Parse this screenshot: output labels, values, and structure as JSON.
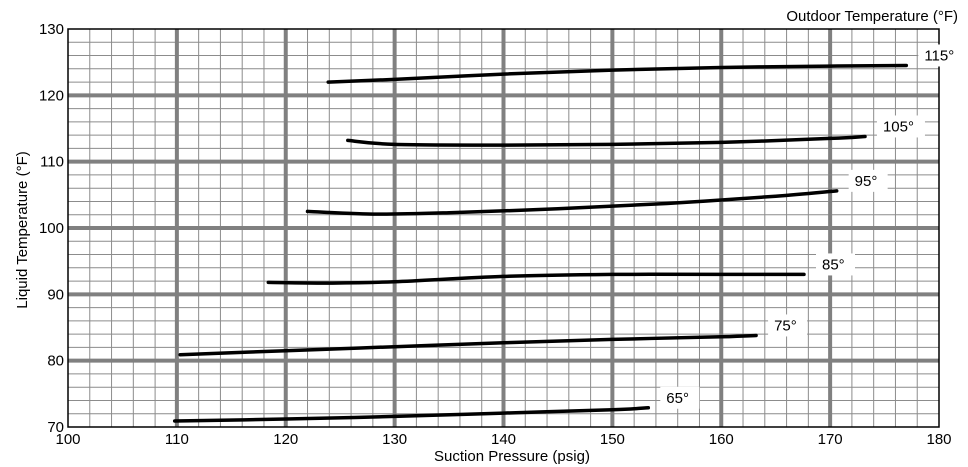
{
  "chart_data": {
    "type": "line",
    "title": "",
    "legend_title": "Outdoor Temperature (°F)",
    "xlabel": "Suction Pressure (psig)",
    "ylabel": "Liquid  Temperature  (°F)",
    "xlim": [
      100,
      180
    ],
    "ylim": [
      70,
      130
    ],
    "x_ticks": [
      100,
      110,
      120,
      130,
      140,
      150,
      160,
      170,
      180
    ],
    "y_ticks": [
      70,
      80,
      90,
      100,
      110,
      120,
      130
    ],
    "grid": true,
    "series": [
      {
        "name": "115°",
        "label": "115°",
        "points": [
          [
            123.9,
            122.0
          ],
          [
            130,
            122.4
          ],
          [
            140,
            123.2
          ],
          [
            150,
            123.8
          ],
          [
            160,
            124.2
          ],
          [
            170,
            124.4
          ],
          [
            177,
            124.5
          ]
        ]
      },
      {
        "name": "105°",
        "label": "105°",
        "points": [
          [
            125.7,
            113.2
          ],
          [
            130,
            112.6
          ],
          [
            140,
            112.5
          ],
          [
            150,
            112.6
          ],
          [
            160,
            112.9
          ],
          [
            170,
            113.5
          ],
          [
            173.2,
            113.8
          ]
        ]
      },
      {
        "name": "95°",
        "label": "95°",
        "points": [
          [
            122,
            102.5
          ],
          [
            128,
            102.1
          ],
          [
            135,
            102.3
          ],
          [
            145,
            102.9
          ],
          [
            155,
            103.7
          ],
          [
            165,
            104.8
          ],
          [
            170.6,
            105.6
          ]
        ]
      },
      {
        "name": "85°",
        "label": "85°",
        "points": [
          [
            118.4,
            91.8
          ],
          [
            124,
            91.7
          ],
          [
            130,
            91.9
          ],
          [
            140,
            92.7
          ],
          [
            150,
            93.0
          ],
          [
            160,
            93.0
          ],
          [
            167.6,
            93.0
          ]
        ]
      },
      {
        "name": "75°",
        "label": "75°",
        "points": [
          [
            110.3,
            80.9
          ],
          [
            120,
            81.5
          ],
          [
            130,
            82.1
          ],
          [
            140,
            82.7
          ],
          [
            150,
            83.2
          ],
          [
            160,
            83.6
          ],
          [
            163.2,
            83.8
          ]
        ]
      },
      {
        "name": "65°",
        "label": "65°",
        "points": [
          [
            109.8,
            70.9
          ],
          [
            120,
            71.2
          ],
          [
            130,
            71.6
          ],
          [
            140,
            72.1
          ],
          [
            150,
            72.6
          ],
          [
            153.3,
            72.9
          ]
        ]
      }
    ]
  }
}
